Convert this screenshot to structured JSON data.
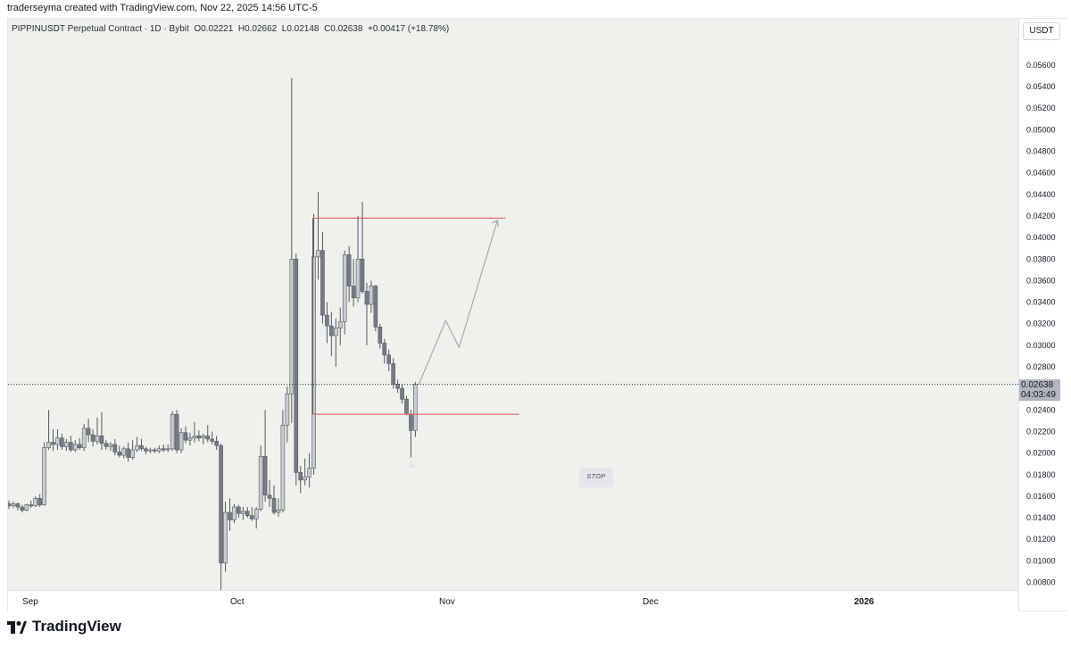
{
  "header": {
    "attribution": "traderseyma created with TradingView.com, Nov 22, 2025 14:56 UTC-5"
  },
  "legend": {
    "symbol": "PIPPINUSDT Perpetual Contract · 1D · Bybit",
    "open": "O0.02221",
    "high": "H0.02662",
    "low": "L0.02148",
    "close": "C0.02638",
    "change": "+0.00417 (+18.78%)"
  },
  "currency": "USDT",
  "last_price": {
    "price": "0.02638",
    "countdown": "04:03:49"
  },
  "annotation": {
    "stop_label": "STOP"
  },
  "footer": {
    "brand": "TradingView"
  },
  "colors": {
    "bull": "#c9ccd0",
    "bear": "#787b86",
    "box_line": "#e8535a",
    "grid_bg": "#eff1ec",
    "arrow": "#a8aab0"
  },
  "chart_data": {
    "type": "candlestick",
    "title": "PIPPINUSDT Perpetual Contract · 1D · Bybit",
    "xlabel": "",
    "ylabel": "USDT",
    "ylim": [
      0.0073,
      0.0603
    ],
    "ticks_y": [
      "0.05600",
      "0.05400",
      "0.05200",
      "0.05000",
      "0.04800",
      "0.04600",
      "0.04400",
      "0.04200",
      "0.04000",
      "0.03800",
      "0.03600",
      "0.03400",
      "0.03200",
      "0.03000",
      "0.02800",
      "0.02600",
      "0.02400",
      "0.02200",
      "0.02000",
      "0.01800",
      "0.01600",
      "0.01400",
      "0.01200",
      "0.01000",
      "0.00800"
    ],
    "ticks_x": [
      "Sep",
      "Oct",
      "Nov",
      "Dec",
      "2026"
    ],
    "candles": [
      {
        "o": 0.0153,
        "h": 0.0156,
        "l": 0.0148,
        "c": 0.0151
      },
      {
        "o": 0.0151,
        "h": 0.0155,
        "l": 0.0149,
        "c": 0.0153
      },
      {
        "o": 0.0153,
        "h": 0.0154,
        "l": 0.0147,
        "c": 0.015
      },
      {
        "o": 0.015,
        "h": 0.0152,
        "l": 0.0145,
        "c": 0.0147
      },
      {
        "o": 0.0147,
        "h": 0.0153,
        "l": 0.0146,
        "c": 0.0152
      },
      {
        "o": 0.0152,
        "h": 0.0156,
        "l": 0.0149,
        "c": 0.0151
      },
      {
        "o": 0.0151,
        "h": 0.016,
        "l": 0.015,
        "c": 0.0158
      },
      {
        "o": 0.0158,
        "h": 0.0162,
        "l": 0.015,
        "c": 0.0152
      },
      {
        "o": 0.0152,
        "h": 0.021,
        "l": 0.0151,
        "c": 0.0205
      },
      {
        "o": 0.0205,
        "h": 0.024,
        "l": 0.0203,
        "c": 0.021
      },
      {
        "o": 0.021,
        "h": 0.0222,
        "l": 0.0202,
        "c": 0.0208
      },
      {
        "o": 0.0208,
        "h": 0.0222,
        "l": 0.0203,
        "c": 0.0214
      },
      {
        "o": 0.0214,
        "h": 0.0218,
        "l": 0.0203,
        "c": 0.0206
      },
      {
        "o": 0.0206,
        "h": 0.0213,
        "l": 0.0202,
        "c": 0.021
      },
      {
        "o": 0.021,
        "h": 0.0216,
        "l": 0.0201,
        "c": 0.0203
      },
      {
        "o": 0.0203,
        "h": 0.0212,
        "l": 0.0201,
        "c": 0.0208
      },
      {
        "o": 0.0208,
        "h": 0.0214,
        "l": 0.0203,
        "c": 0.0205
      },
      {
        "o": 0.0205,
        "h": 0.0227,
        "l": 0.0202,
        "c": 0.0223
      },
      {
        "o": 0.0223,
        "h": 0.0232,
        "l": 0.021,
        "c": 0.0217
      },
      {
        "o": 0.0217,
        "h": 0.0222,
        "l": 0.0206,
        "c": 0.0211
      },
      {
        "o": 0.0211,
        "h": 0.0233,
        "l": 0.0208,
        "c": 0.0216
      },
      {
        "o": 0.0216,
        "h": 0.0238,
        "l": 0.0203,
        "c": 0.0209
      },
      {
        "o": 0.0209,
        "h": 0.0212,
        "l": 0.0203,
        "c": 0.0206
      },
      {
        "o": 0.0206,
        "h": 0.021,
        "l": 0.0202,
        "c": 0.0208
      },
      {
        "o": 0.0208,
        "h": 0.0213,
        "l": 0.0198,
        "c": 0.0201
      },
      {
        "o": 0.0201,
        "h": 0.0207,
        "l": 0.0196,
        "c": 0.0198
      },
      {
        "o": 0.0198,
        "h": 0.0206,
        "l": 0.0195,
        "c": 0.0204
      },
      {
        "o": 0.0204,
        "h": 0.021,
        "l": 0.0192,
        "c": 0.0196
      },
      {
        "o": 0.0196,
        "h": 0.0212,
        "l": 0.0194,
        "c": 0.0203
      },
      {
        "o": 0.0203,
        "h": 0.0215,
        "l": 0.0201,
        "c": 0.0207
      },
      {
        "o": 0.0207,
        "h": 0.0213,
        "l": 0.0202,
        "c": 0.0204
      },
      {
        "o": 0.0204,
        "h": 0.0206,
        "l": 0.0199,
        "c": 0.0202
      },
      {
        "o": 0.0202,
        "h": 0.0205,
        "l": 0.02,
        "c": 0.0203
      },
      {
        "o": 0.0203,
        "h": 0.0205,
        "l": 0.02,
        "c": 0.0202
      },
      {
        "o": 0.0202,
        "h": 0.0207,
        "l": 0.02,
        "c": 0.0204
      },
      {
        "o": 0.0204,
        "h": 0.0208,
        "l": 0.0201,
        "c": 0.0203
      },
      {
        "o": 0.0203,
        "h": 0.0208,
        "l": 0.0201,
        "c": 0.0204
      },
      {
        "o": 0.0204,
        "h": 0.0239,
        "l": 0.0202,
        "c": 0.0236
      },
      {
        "o": 0.0236,
        "h": 0.024,
        "l": 0.02,
        "c": 0.0203
      },
      {
        "o": 0.0203,
        "h": 0.0223,
        "l": 0.02,
        "c": 0.0219
      },
      {
        "o": 0.0219,
        "h": 0.0225,
        "l": 0.0209,
        "c": 0.0212
      },
      {
        "o": 0.0212,
        "h": 0.0219,
        "l": 0.0207,
        "c": 0.0214
      },
      {
        "o": 0.0214,
        "h": 0.0229,
        "l": 0.021,
        "c": 0.0216
      },
      {
        "o": 0.0216,
        "h": 0.0221,
        "l": 0.0211,
        "c": 0.0214
      },
      {
        "o": 0.0214,
        "h": 0.0218,
        "l": 0.0208,
        "c": 0.0216
      },
      {
        "o": 0.0216,
        "h": 0.0226,
        "l": 0.021,
        "c": 0.0213
      },
      {
        "o": 0.0213,
        "h": 0.022,
        "l": 0.0208,
        "c": 0.0211
      },
      {
        "o": 0.0211,
        "h": 0.0216,
        "l": 0.0203,
        "c": 0.0207
      },
      {
        "o": 0.0207,
        "h": 0.0209,
        "l": 0.007,
        "c": 0.0098
      },
      {
        "o": 0.0098,
        "h": 0.0155,
        "l": 0.009,
        "c": 0.0145
      },
      {
        "o": 0.0145,
        "h": 0.0158,
        "l": 0.0128,
        "c": 0.0138
      },
      {
        "o": 0.0138,
        "h": 0.0153,
        "l": 0.0135,
        "c": 0.015
      },
      {
        "o": 0.015,
        "h": 0.0152,
        "l": 0.014,
        "c": 0.0144
      },
      {
        "o": 0.0144,
        "h": 0.015,
        "l": 0.0138,
        "c": 0.0146
      },
      {
        "o": 0.0146,
        "h": 0.015,
        "l": 0.014,
        "c": 0.0142
      },
      {
        "o": 0.0142,
        "h": 0.015,
        "l": 0.0137,
        "c": 0.0139
      },
      {
        "o": 0.0139,
        "h": 0.015,
        "l": 0.013,
        "c": 0.0148
      },
      {
        "o": 0.0148,
        "h": 0.0207,
        "l": 0.0146,
        "c": 0.0197
      },
      {
        "o": 0.0197,
        "h": 0.024,
        "l": 0.0155,
        "c": 0.0161
      },
      {
        "o": 0.0161,
        "h": 0.0175,
        "l": 0.015,
        "c": 0.0158
      },
      {
        "o": 0.0158,
        "h": 0.017,
        "l": 0.0143,
        "c": 0.0145
      },
      {
        "o": 0.0145,
        "h": 0.0158,
        "l": 0.0141,
        "c": 0.0147
      },
      {
        "o": 0.0147,
        "h": 0.024,
        "l": 0.0145,
        "c": 0.0226
      },
      {
        "o": 0.0226,
        "h": 0.0262,
        "l": 0.021,
        "c": 0.0255
      },
      {
        "o": 0.0255,
        "h": 0.0548,
        "l": 0.0228,
        "c": 0.038
      },
      {
        "o": 0.038,
        "h": 0.0385,
        "l": 0.017,
        "c": 0.0182
      },
      {
        "o": 0.0182,
        "h": 0.0188,
        "l": 0.0163,
        "c": 0.0175
      },
      {
        "o": 0.0175,
        "h": 0.0195,
        "l": 0.017,
        "c": 0.0178
      },
      {
        "o": 0.0178,
        "h": 0.02,
        "l": 0.0168,
        "c": 0.0186
      },
      {
        "o": 0.0186,
        "h": 0.0422,
        "l": 0.018,
        "c": 0.0382
      },
      {
        "o": 0.0382,
        "h": 0.0442,
        "l": 0.0361,
        "c": 0.0388
      },
      {
        "o": 0.0388,
        "h": 0.0405,
        "l": 0.032,
        "c": 0.0328
      },
      {
        "o": 0.0328,
        "h": 0.034,
        "l": 0.0302,
        "c": 0.0318
      },
      {
        "o": 0.0318,
        "h": 0.0331,
        "l": 0.029,
        "c": 0.0309
      },
      {
        "o": 0.0309,
        "h": 0.0325,
        "l": 0.028,
        "c": 0.0316
      },
      {
        "o": 0.0316,
        "h": 0.0335,
        "l": 0.03,
        "c": 0.0322
      },
      {
        "o": 0.0322,
        "h": 0.0388,
        "l": 0.031,
        "c": 0.0384
      },
      {
        "o": 0.0384,
        "h": 0.0392,
        "l": 0.034,
        "c": 0.0355
      },
      {
        "o": 0.0355,
        "h": 0.038,
        "l": 0.0336,
        "c": 0.0344
      },
      {
        "o": 0.0344,
        "h": 0.042,
        "l": 0.034,
        "c": 0.038
      },
      {
        "o": 0.038,
        "h": 0.0433,
        "l": 0.0348,
        "c": 0.035
      },
      {
        "o": 0.035,
        "h": 0.0358,
        "l": 0.03,
        "c": 0.0338
      },
      {
        "o": 0.0338,
        "h": 0.036,
        "l": 0.033,
        "c": 0.0355
      },
      {
        "o": 0.0355,
        "h": 0.0356,
        "l": 0.0313,
        "c": 0.0317
      },
      {
        "o": 0.0317,
        "h": 0.032,
        "l": 0.0297,
        "c": 0.0302
      },
      {
        "o": 0.0302,
        "h": 0.0306,
        "l": 0.0283,
        "c": 0.0291
      },
      {
        "o": 0.0291,
        "h": 0.0296,
        "l": 0.0276,
        "c": 0.0283
      },
      {
        "o": 0.0283,
        "h": 0.0288,
        "l": 0.026,
        "c": 0.0264
      },
      {
        "o": 0.0264,
        "h": 0.0268,
        "l": 0.0256,
        "c": 0.026
      },
      {
        "o": 0.026,
        "h": 0.0264,
        "l": 0.0246,
        "c": 0.025
      },
      {
        "o": 0.025,
        "h": 0.0253,
        "l": 0.0235,
        "c": 0.0236
      },
      {
        "o": 0.0236,
        "h": 0.024,
        "l": 0.0196,
        "c": 0.0221
      },
      {
        "o": 0.0221,
        "h": 0.0266,
        "l": 0.0215,
        "c": 0.0264
      }
    ],
    "annotations": {
      "box_top_price": 0.0418,
      "box_bottom_price": 0.0236,
      "last_price": 0.02638,
      "projection_path": [
        [
          0.0264
        ],
        [
          0.0323
        ],
        [
          0.0298
        ],
        [
          0.0416
        ]
      ]
    }
  }
}
